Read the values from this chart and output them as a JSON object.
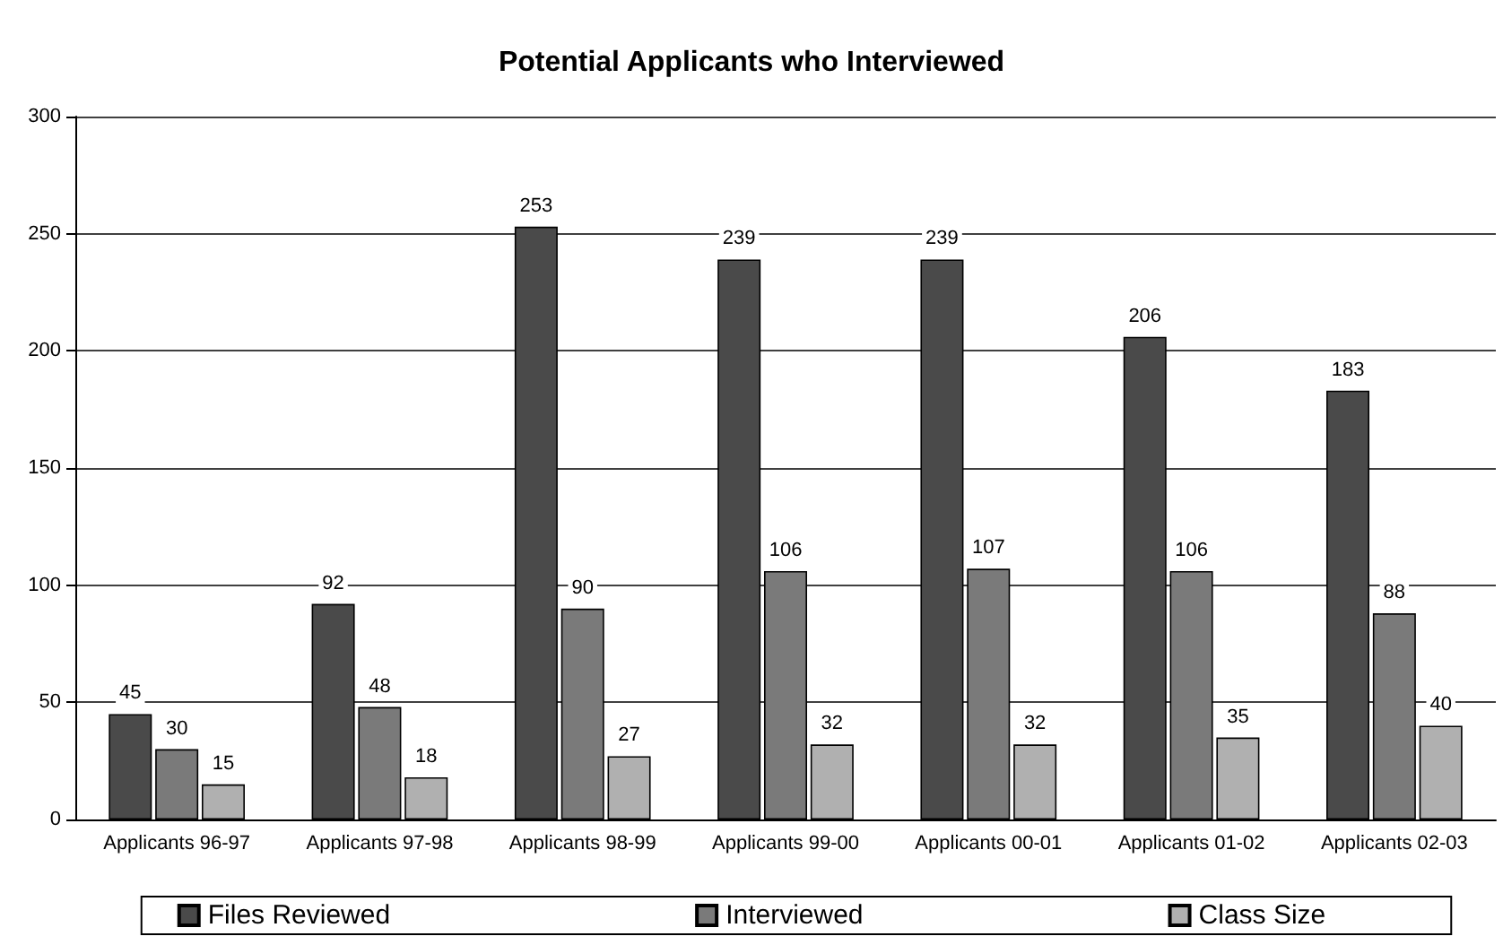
{
  "chart_data": {
    "type": "bar",
    "title": "Potential Applicants who Interviewed",
    "categories": [
      "Applicants 96-97",
      "Applicants 97-98",
      "Applicants 98-99",
      "Applicants 99-00",
      "Applicants 00-01",
      "Applicants 01-02",
      "Applicants 02-03"
    ],
    "series": [
      {
        "name": "Files Reviewed",
        "color": "#4a4a4a",
        "values": [
          45,
          92,
          253,
          239,
          239,
          206,
          183
        ]
      },
      {
        "name": "Interviewed",
        "color": "#7a7a7a",
        "values": [
          30,
          48,
          90,
          106,
          107,
          106,
          88
        ]
      },
      {
        "name": "Class Size",
        "color": "#b0b0b0",
        "values": [
          15,
          18,
          27,
          32,
          32,
          35,
          40
        ]
      }
    ],
    "ylim": [
      0,
      300
    ],
    "yticks": [
      0,
      50,
      100,
      150,
      200,
      250,
      300
    ],
    "grid": "y",
    "legend": "bottom",
    "data_labels": true
  }
}
